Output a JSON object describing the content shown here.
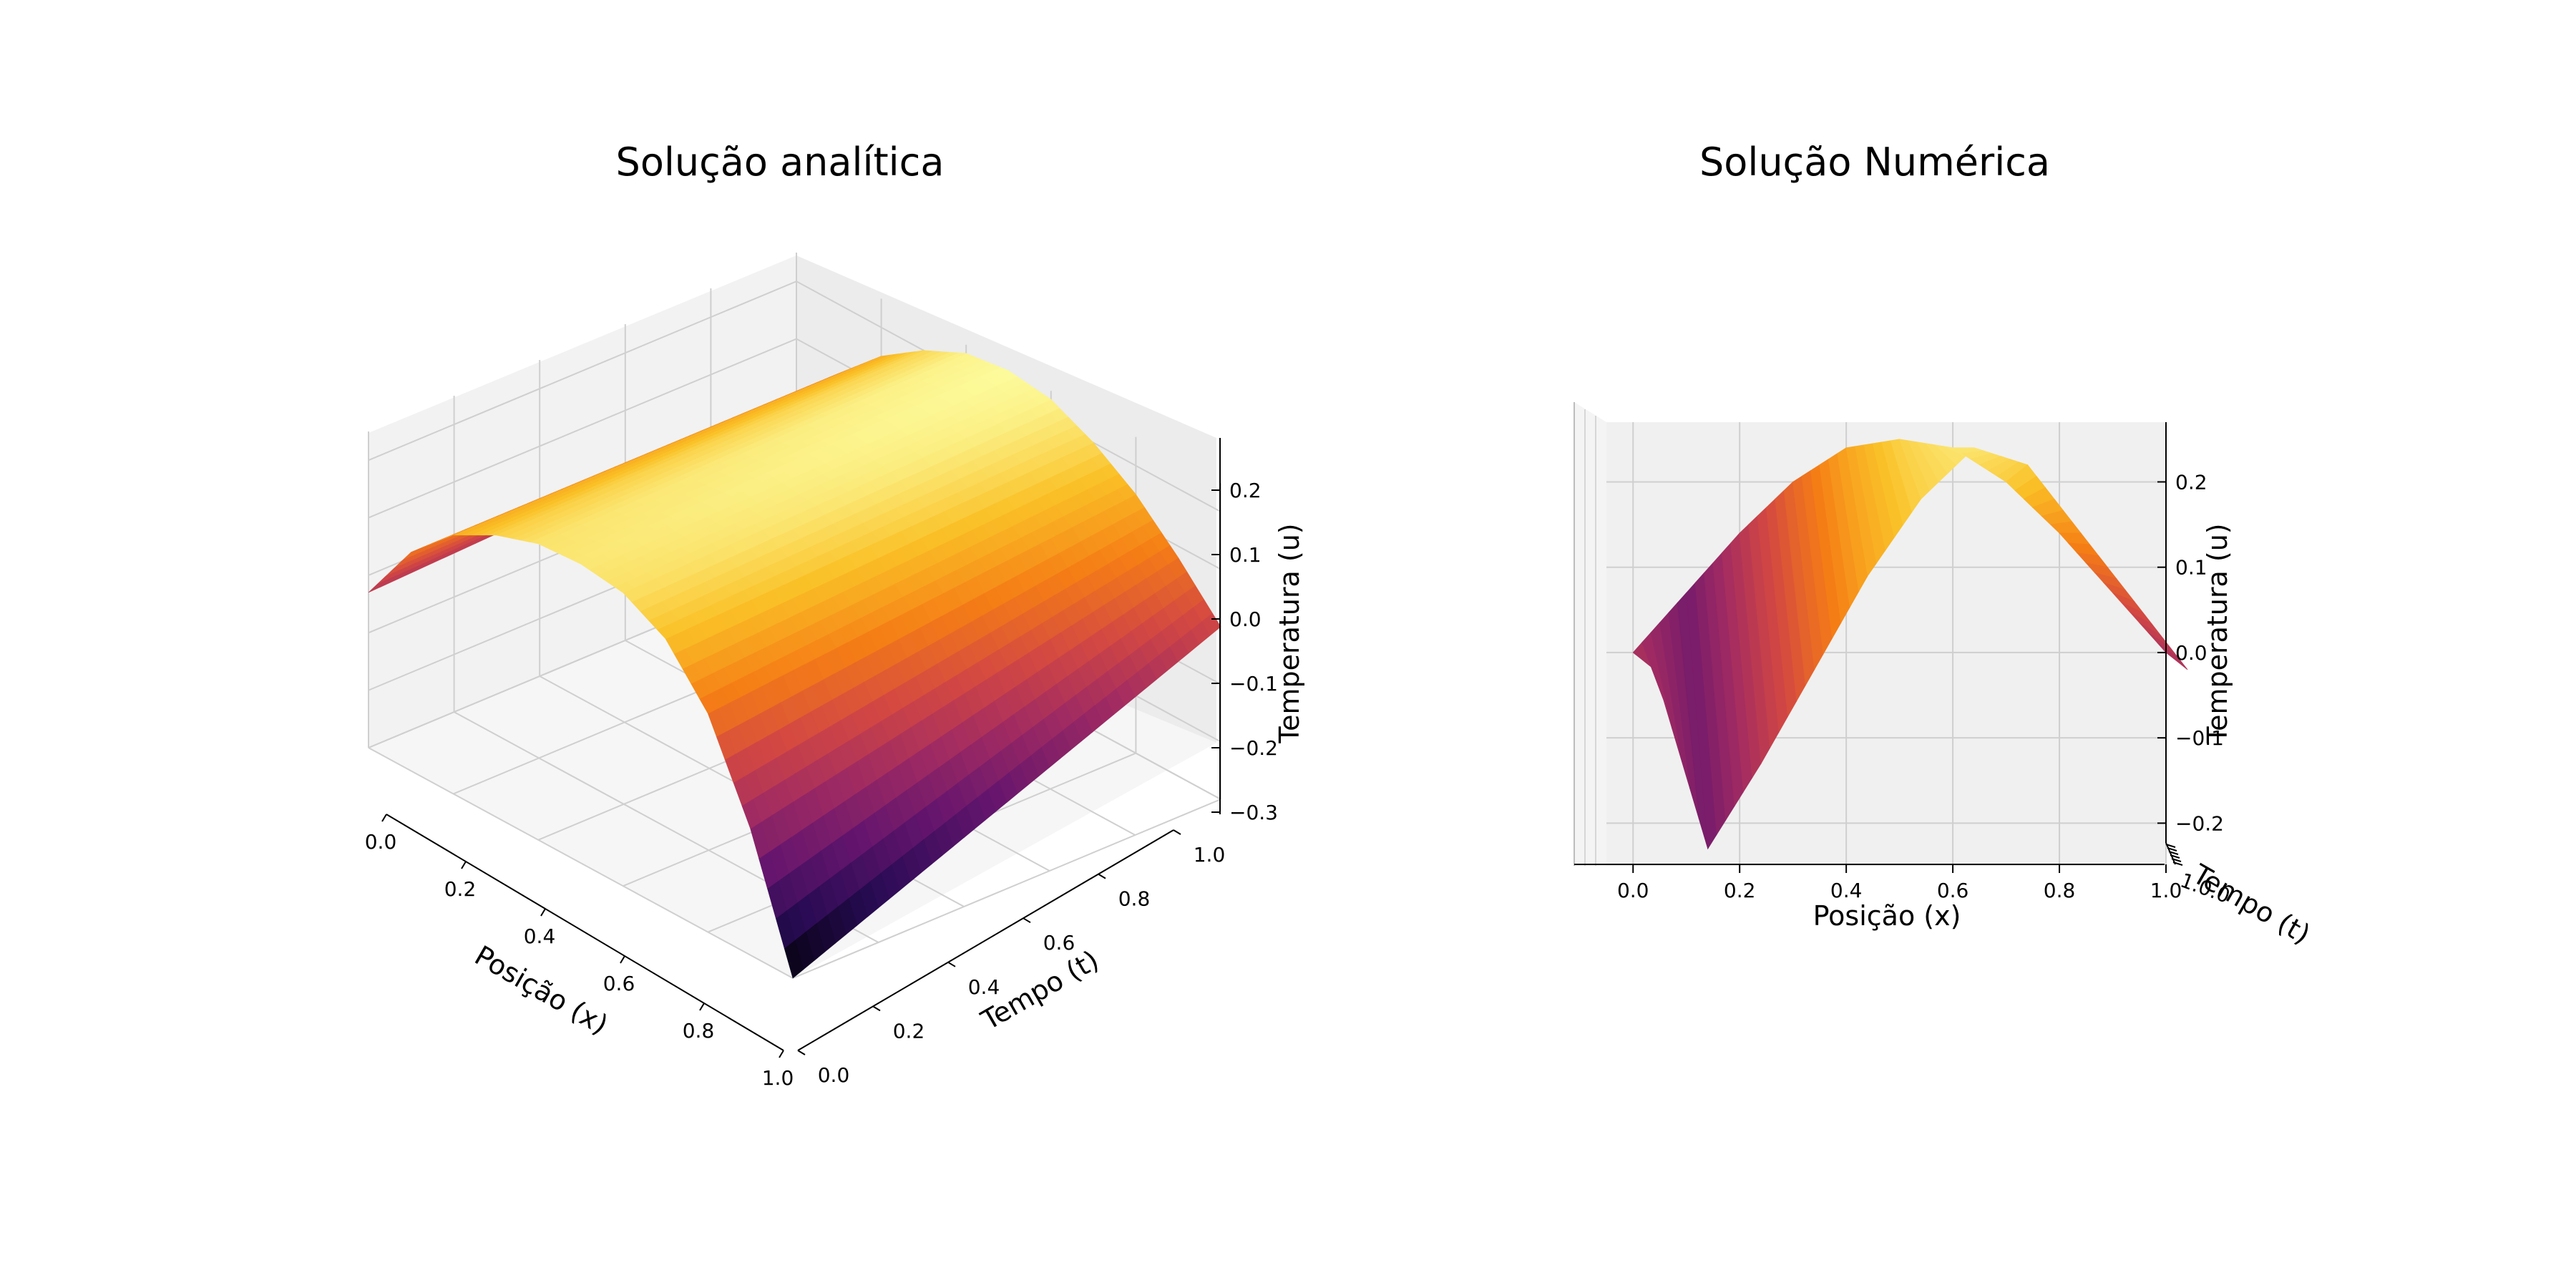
{
  "chart_data": [
    {
      "type": "surface",
      "title": "Solução analítica",
      "xlabel": "Posição (x)",
      "ylabel": "Tempo (t)",
      "zlabel": "Temperatura (u)",
      "colormap": "inferno",
      "xlim": [
        0.0,
        1.0
      ],
      "ylim": [
        0.0,
        1.0
      ],
      "zlim": [
        -0.3,
        0.25
      ],
      "x_ticks": [
        "0.0",
        "0.2",
        "0.4",
        "0.6",
        "0.8",
        "1.0"
      ],
      "y_ticks": [
        "0.0",
        "0.2",
        "0.4",
        "0.6",
        "0.8",
        "1.0"
      ],
      "z_ticks": [
        "−0.3",
        "−0.2",
        "−0.1",
        "0.0",
        "0.1",
        "0.2"
      ],
      "grid": true,
      "surface": {
        "x": [
          0.0,
          0.1,
          0.2,
          0.3,
          0.4,
          0.5,
          0.6,
          0.7,
          0.8,
          0.9,
          1.0
        ],
        "t_endpoints": [
          0.0,
          1.0
        ],
        "u_at_t0": [
          -0.03,
          0.08,
          0.15,
          0.19,
          0.215,
          0.22,
          0.21,
          0.17,
          0.08,
          -0.08,
          -0.3
        ],
        "u_at_t1": [
          0.0,
          0.08,
          0.15,
          0.2,
          0.235,
          0.245,
          0.235,
          0.2,
          0.15,
          0.08,
          0.0
        ]
      }
    },
    {
      "type": "surface",
      "title": "Solução Numérica",
      "xlabel": "Posição (x)",
      "ylabel": "Tempo (t)",
      "zlabel": "Temperatura (u)",
      "colormap": "inferno",
      "xlim": [
        -0.05,
        1.0
      ],
      "zlim": [
        -0.25,
        0.27
      ],
      "x_ticks": [
        "0.0",
        "0.2",
        "0.4",
        "0.6",
        "0.8",
        "1.0"
      ],
      "z_ticks": [
        "−0.2",
        "−0.1",
        "0.0",
        "0.1",
        "0.2"
      ],
      "t_tick_labels_overlapping": "1.0.0",
      "grid": true,
      "surface": {
        "x": [
          0.0,
          0.1,
          0.2,
          0.3,
          0.4,
          0.5,
          0.6,
          0.7,
          0.8,
          0.9,
          1.0
        ],
        "u_front": [
          -0.02,
          -0.23,
          -0.13,
          -0.02,
          0.09,
          0.18,
          0.24,
          0.22,
          0.14,
          0.06,
          -0.02
        ],
        "u_back": [
          0.0,
          0.07,
          0.14,
          0.2,
          0.24,
          0.25,
          0.24,
          0.2,
          0.14,
          0.07,
          0.0
        ]
      }
    }
  ]
}
